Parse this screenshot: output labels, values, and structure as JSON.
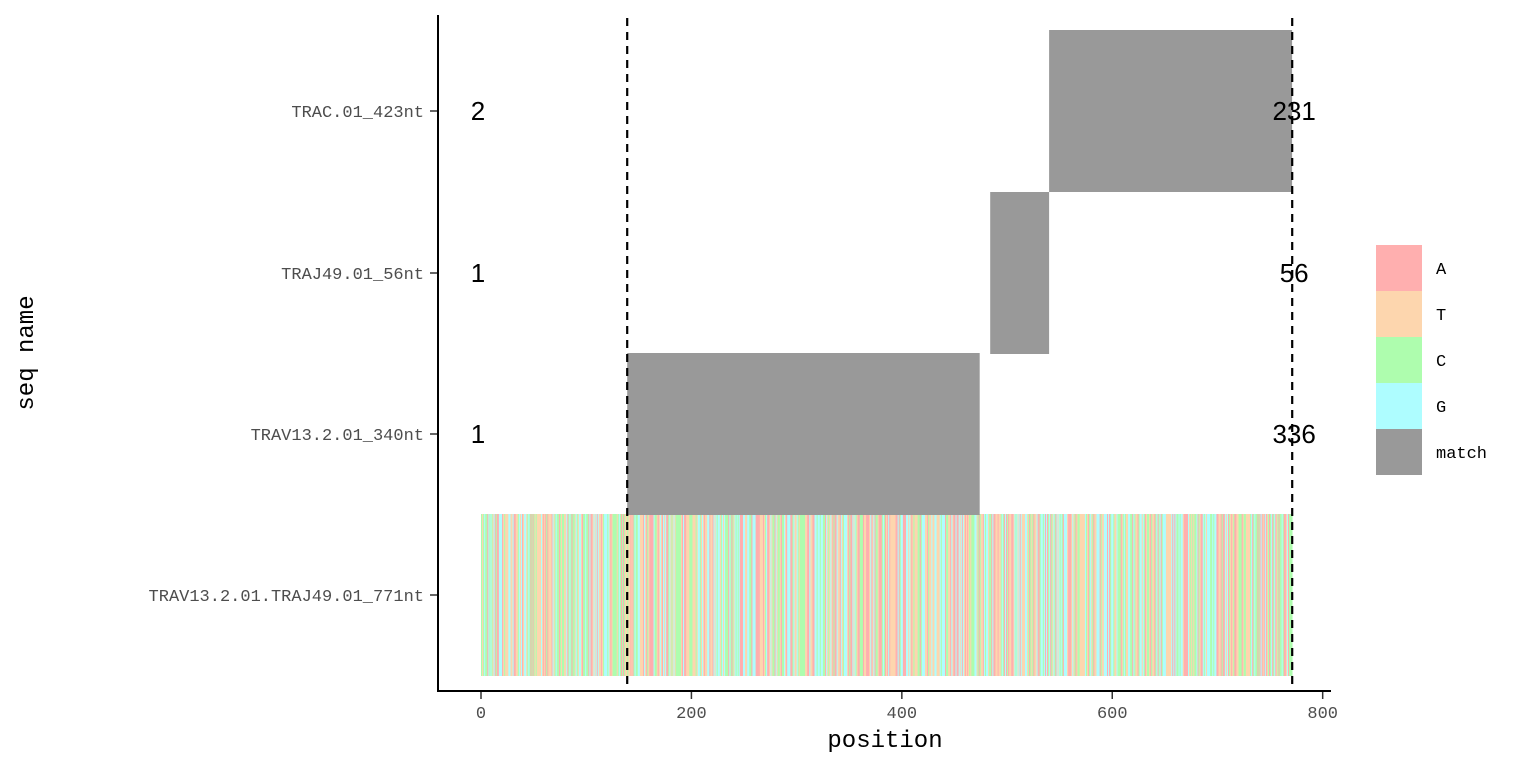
{
  "chart_data": {
    "type": "bar",
    "xlabel": "position",
    "ylabel": "seq name",
    "xlim": [
      -41,
      806
    ],
    "x_ticks": [
      0,
      200,
      400,
      600,
      800
    ],
    "categories": [
      "TRAV13.2.01.TRAJ49.01_771nt",
      "TRAV13.2.01_340nt",
      "TRAJ49.01_56nt",
      "TRAC.01_423nt"
    ],
    "reference_sequence": {
      "name": "TRAV13.2.01.TRAJ49.01_771nt",
      "start": 0,
      "end": 771,
      "fill": "per-base nucleotide colours"
    },
    "match_segments": [
      {
        "seq": "TRAV13.2.01_340nt",
        "start": 139,
        "end": 474,
        "label_start": "1",
        "label_end": "336"
      },
      {
        "seq": "TRAJ49.01_56nt",
        "start": 484,
        "end": 540,
        "label_start": "1",
        "label_end": "56"
      },
      {
        "seq": "TRAC.01_423nt",
        "start": 540,
        "end": 771,
        "label_start": "2",
        "label_end": "231"
      }
    ],
    "vlines": [
      139,
      771
    ],
    "legend": {
      "position": "right",
      "entries": [
        {
          "label": "A",
          "color": "#FFAFAF"
        },
        {
          "label": "T",
          "color": "#FDD6AE"
        },
        {
          "label": "C",
          "color": "#AEFDAE"
        },
        {
          "label": "G",
          "color": "#AEFDFF"
        },
        {
          "label": "match",
          "color": "#999999"
        }
      ]
    },
    "grid": false
  }
}
